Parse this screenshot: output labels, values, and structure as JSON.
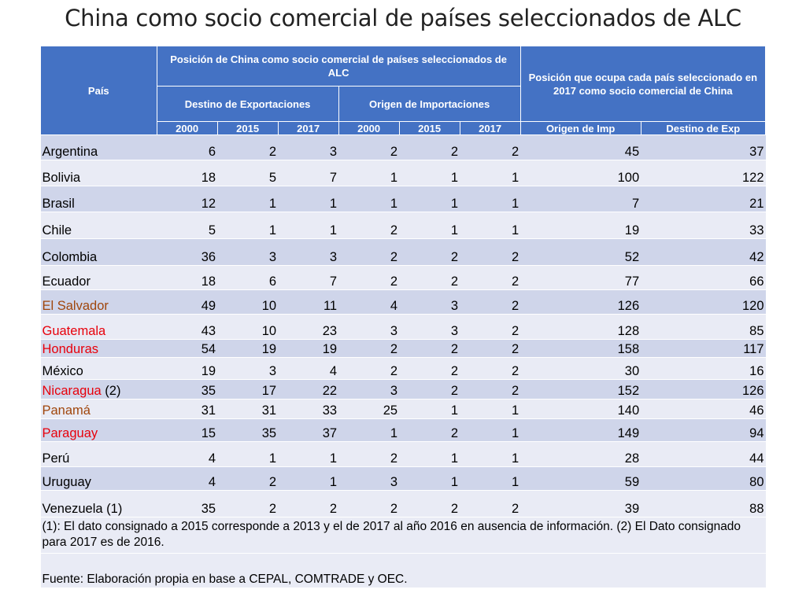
{
  "title": "China como socio comercial de países seleccionados de ALC",
  "table": {
    "header": {
      "pais": "País",
      "group_position": "Posición de China como socio comercial de países seleccionados de ALC",
      "group_rank": "Posición que ocupa cada país seleccionado en 2017 como socio comercial de China",
      "destino": "Destino de Exportaciones",
      "origen": "Origen de Importaciones",
      "years": [
        "2000",
        "2015",
        "2017",
        "2000",
        "2015",
        "2017"
      ],
      "origen_imp": "Origen de Imp",
      "destino_exp": "Destino de Exp"
    },
    "rows": [
      {
        "country": "Argentina",
        "suffix": "",
        "color": "#000000",
        "values": [
          "6",
          "2",
          "3",
          "2",
          "2",
          "2",
          "45",
          "37"
        ]
      },
      {
        "country": "Bolivia",
        "suffix": "",
        "color": "#000000",
        "values": [
          "18",
          "5",
          "7",
          "1",
          "1",
          "1",
          "100",
          "122"
        ]
      },
      {
        "country": "Brasil",
        "suffix": "",
        "color": "#000000",
        "values": [
          "12",
          "1",
          "1",
          "1",
          "1",
          "1",
          "7",
          "21"
        ]
      },
      {
        "country": "Chile",
        "suffix": "",
        "color": "#000000",
        "values": [
          "5",
          "1",
          "1",
          "2",
          "1",
          "1",
          "19",
          "33"
        ]
      },
      {
        "country": "Colombia",
        "suffix": "",
        "color": "#000000",
        "values": [
          "36",
          "3",
          "3",
          "2",
          "2",
          "2",
          "52",
          "42"
        ]
      },
      {
        "country": "Ecuador",
        "suffix": "",
        "color": "#000000",
        "values": [
          "18",
          "6",
          "7",
          "2",
          "2",
          "2",
          "77",
          "66"
        ]
      },
      {
        "country": "El Salvador",
        "suffix": "",
        "color": "#a0460c",
        "values": [
          "49",
          "10",
          "11",
          "4",
          "3",
          "2",
          "126",
          "120"
        ]
      },
      {
        "country": "Guatemala",
        "suffix": "",
        "color": "#e8000b",
        "values": [
          "43",
          "10",
          "23",
          "3",
          "3",
          "2",
          "128",
          "85"
        ]
      },
      {
        "country": "Honduras",
        "suffix": "",
        "color": "#e8000b",
        "values": [
          "54",
          "19",
          "19",
          "2",
          "2",
          "2",
          "158",
          "117"
        ]
      },
      {
        "country": "México",
        "suffix": "",
        "color": "#000000",
        "values": [
          "19",
          "3",
          "4",
          "2",
          "2",
          "2",
          "30",
          "16"
        ]
      },
      {
        "country": "Nicaragua",
        "suffix": " (2)",
        "color": "#e8000b",
        "values": [
          "35",
          "17",
          "22",
          "3",
          "2",
          "2",
          "152",
          "126"
        ]
      },
      {
        "country": "Panamá",
        "suffix": "",
        "color": "#a0460c",
        "values": [
          "31",
          "31",
          "33",
          "25",
          "1",
          "1",
          "140",
          "46"
        ]
      },
      {
        "country": "Paraguay",
        "suffix": "",
        "color": "#e8000b",
        "values": [
          "15",
          "35",
          "37",
          "1",
          "2",
          "1",
          "149",
          "94"
        ]
      },
      {
        "country": "Perú",
        "suffix": "",
        "color": "#000000",
        "values": [
          "4",
          "1",
          "1",
          "2",
          "1",
          "1",
          "28",
          "44"
        ]
      },
      {
        "country": "Uruguay",
        "suffix": "",
        "color": "#000000",
        "values": [
          "4",
          "2",
          "1",
          "3",
          "1",
          "1",
          "59",
          "80"
        ]
      },
      {
        "country": "Venezuela (1)",
        "suffix": "",
        "color": "#000000",
        "values": [
          "35",
          "2",
          "2",
          "2",
          "2",
          "2",
          "39",
          "88"
        ]
      }
    ],
    "note": "(1): El dato consignado a 2015 corresponde a 2013 y el de 2017 al año 2016 en ausencia de información. (2) El Dato consignado para 2017 es de 2016.",
    "source": "Fuente: Elaboración propia en base a CEPAL, COMTRADE y OEC."
  }
}
